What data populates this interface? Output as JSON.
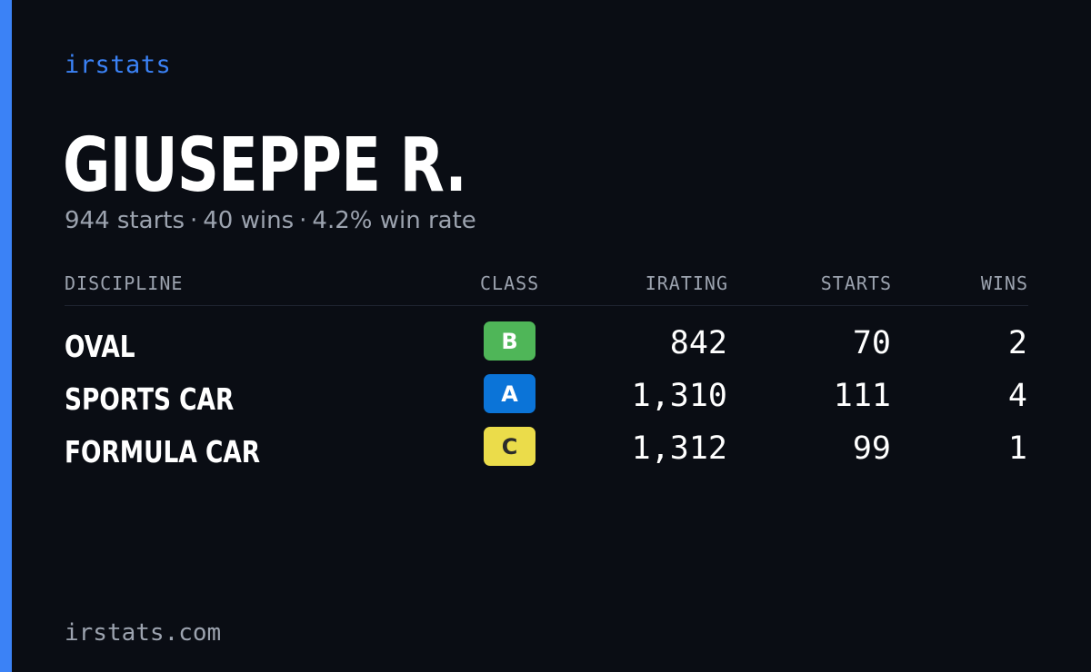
{
  "brand": "irstats",
  "player": {
    "name": "GIUSEPPE R.",
    "starts_text": "944 starts",
    "wins_text": "40 wins",
    "win_rate_text": "4.2% win rate",
    "separator": "·"
  },
  "table": {
    "headers": {
      "discipline": "DISCIPLINE",
      "class": "CLASS",
      "irating": "IRATING",
      "starts": "STARTS",
      "wins": "WINS"
    },
    "rows": [
      {
        "discipline": "OVAL",
        "class": "B",
        "class_color": "#4fb658",
        "class_text_color": "#ffffff",
        "irating": "842",
        "starts": "70",
        "wins": "2"
      },
      {
        "discipline": "SPORTS CAR",
        "class": "A",
        "class_color": "#0b74d8",
        "class_text_color": "#ffffff",
        "irating": "1,310",
        "starts": "111",
        "wins": "4"
      },
      {
        "discipline": "FORMULA CAR",
        "class": "C",
        "class_color": "#ebdc4a",
        "class_text_color": "#2b2b2b",
        "irating": "1,312",
        "starts": "99",
        "wins": "1"
      }
    ]
  },
  "footer": "irstats.com",
  "colors": {
    "background": "#0a0d14",
    "accent": "#3b82f6",
    "muted_text": "#9ca3af",
    "text": "#ffffff"
  }
}
